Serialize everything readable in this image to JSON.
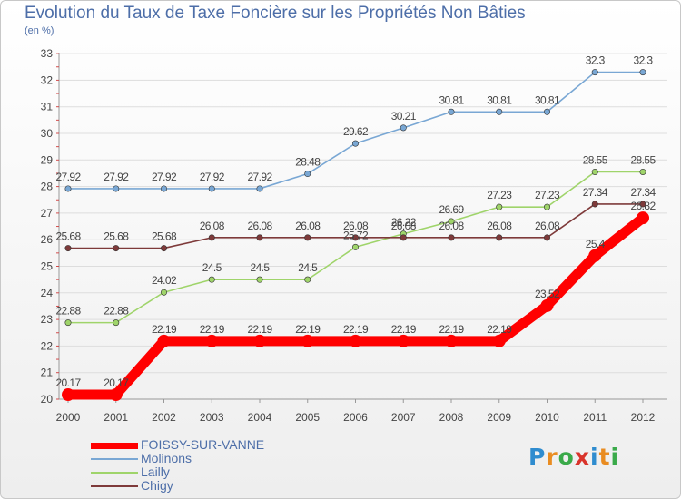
{
  "header": {
    "title": "Evolution du Taux de Taxe Foncière sur les Propriétés Non Bâties",
    "unit": "(en %)"
  },
  "brand": {
    "text": "Proxiti",
    "colors": [
      "#2f8ccf",
      "#e98c21",
      "#3aaa4a",
      "#d9342b",
      "#2f8ccf",
      "#e98c21",
      "#3aaa4a"
    ]
  },
  "chart_data": {
    "type": "line",
    "title": "Evolution du Taux de Taxe Foncière sur les Propriétés Non Bâties",
    "ylabel": "(en %)",
    "xlabel": "",
    "x": [
      "2000",
      "2001",
      "2002",
      "2003",
      "2004",
      "2005",
      "2006",
      "2007",
      "2008",
      "2009",
      "2010",
      "2011",
      "2012"
    ],
    "ylim": [
      20,
      33
    ],
    "yticks": [
      "20",
      "21",
      "22",
      "23",
      "24",
      "25",
      "26",
      "27",
      "28",
      "29",
      "30",
      "31",
      "32",
      "33"
    ],
    "grid": "horizontal",
    "legend_position": "bottom-left",
    "series": [
      {
        "name": "FOISSY-SUR-VANNE",
        "color": "#ff0000",
        "values": [
          20.17,
          20.17,
          22.19,
          22.19,
          22.19,
          22.19,
          22.19,
          22.19,
          22.19,
          22.19,
          23.52,
          25.4,
          26.82
        ],
        "labels": [
          "20.17",
          "20.17",
          "22.19",
          "22.19",
          "22.19",
          "22.19",
          "22.19",
          "22.19",
          "22.19",
          "22.19",
          "23.52",
          "25.4",
          "26.82"
        ]
      },
      {
        "name": "Molinons",
        "color": "#79a7d4",
        "values": [
          27.92,
          27.92,
          27.92,
          27.92,
          27.92,
          28.48,
          29.62,
          30.21,
          30.81,
          30.81,
          30.81,
          32.3,
          32.3
        ],
        "labels": [
          "27.92",
          "27.92",
          "27.92",
          "27.92",
          "27.92",
          "28.48",
          "29.62",
          "30.21",
          "30.81",
          "30.81",
          "30.81",
          "32.3",
          "32.3"
        ]
      },
      {
        "name": "Lailly",
        "color": "#9fd46a",
        "values": [
          22.88,
          22.88,
          24.02,
          24.5,
          24.5,
          24.5,
          25.72,
          26.22,
          26.69,
          27.23,
          27.23,
          28.55,
          28.55
        ],
        "labels": [
          "22.88",
          "22.88",
          "24.02",
          "24.5",
          "24.5",
          "24.5",
          "25.72",
          "26.22",
          "26.69",
          "27.23",
          "27.23",
          "28.55",
          "28.55"
        ]
      },
      {
        "name": "Chigy",
        "color": "#7e3a3a",
        "values": [
          25.68,
          25.68,
          25.68,
          26.08,
          26.08,
          26.08,
          26.08,
          26.08,
          26.08,
          26.08,
          26.08,
          27.34,
          27.34
        ],
        "labels": [
          "25.68",
          "25.68",
          "25.68",
          "26.08",
          "26.08",
          "26.08",
          "26.08",
          "26.08",
          "26.08",
          "26.08",
          "26.08",
          "27.34",
          "27.34"
        ]
      }
    ]
  }
}
